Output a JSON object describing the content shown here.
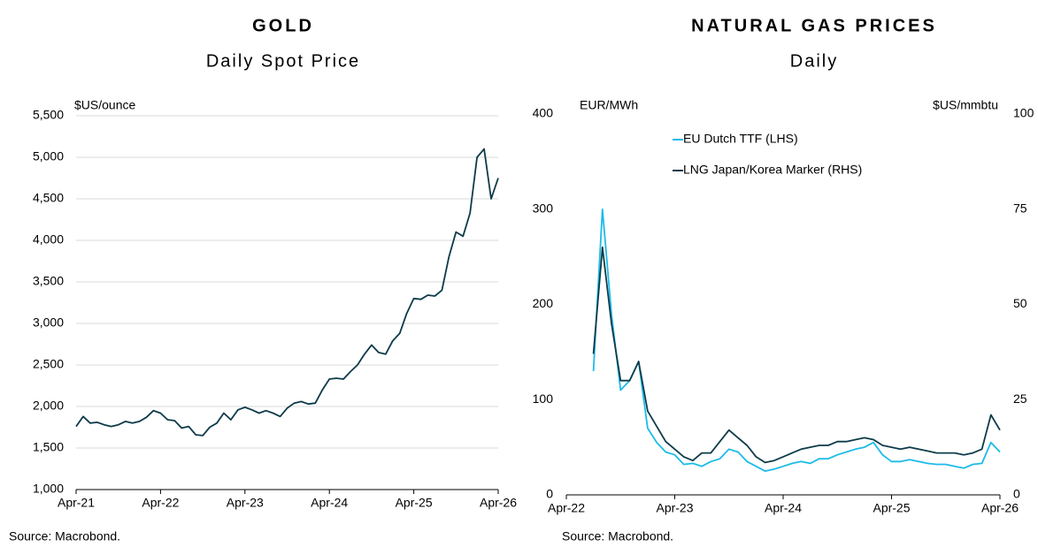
{
  "chart_data": [
    {
      "type": "line",
      "title": "GOLD",
      "subtitle": "Daily Spot Price",
      "y_label": "$US/ounce",
      "source": "Source: Macrobond.",
      "grid": true,
      "x": [
        "2021-04",
        "2021-05",
        "2021-06",
        "2021-07",
        "2021-08",
        "2021-09",
        "2021-10",
        "2021-11",
        "2021-12",
        "2022-01",
        "2022-02",
        "2022-03",
        "2022-04",
        "2022-05",
        "2022-06",
        "2022-07",
        "2022-08",
        "2022-09",
        "2022-10",
        "2022-11",
        "2022-12",
        "2023-01",
        "2023-02",
        "2023-03",
        "2023-04",
        "2023-05",
        "2023-06",
        "2023-07",
        "2023-08",
        "2023-09",
        "2023-10",
        "2023-11",
        "2023-12",
        "2024-01",
        "2024-02",
        "2024-03",
        "2024-04",
        "2024-05",
        "2024-06",
        "2024-07",
        "2024-08",
        "2024-09",
        "2024-10",
        "2024-11",
        "2024-12",
        "2025-01",
        "2025-02",
        "2025-03",
        "2025-04",
        "2025-05",
        "2025-06",
        "2025-07",
        "2025-08",
        "2025-09",
        "2025-10",
        "2025-11",
        "2025-12",
        "2026-01",
        "2026-02",
        "2026-03",
        "2026-04"
      ],
      "series": [
        {
          "name": "Gold",
          "color": "#0d3b4a",
          "values": [
            1760,
            1880,
            1800,
            1810,
            1780,
            1760,
            1780,
            1820,
            1800,
            1820,
            1870,
            1950,
            1920,
            1840,
            1830,
            1740,
            1760,
            1660,
            1650,
            1750,
            1800,
            1920,
            1840,
            1960,
            1990,
            1960,
            1920,
            1950,
            1920,
            1880,
            1980,
            2040,
            2060,
            2030,
            2040,
            2200,
            2330,
            2340,
            2330,
            2420,
            2500,
            2630,
            2740,
            2650,
            2630,
            2790,
            2880,
            3120,
            3300,
            3290,
            3340,
            3330,
            3400,
            3800,
            4100,
            4050,
            4330,
            5000,
            5100,
            4500,
            4750
          ]
        }
      ],
      "xlim": [
        "2021-04",
        "2026-04"
      ],
      "xticks": [
        {
          "value": "2021-04",
          "label": "Apr-21"
        },
        {
          "value": "2022-04",
          "label": "Apr-22"
        },
        {
          "value": "2023-04",
          "label": "Apr-23"
        },
        {
          "value": "2024-04",
          "label": "Apr-24"
        },
        {
          "value": "2025-04",
          "label": "Apr-25"
        },
        {
          "value": "2026-04",
          "label": "Apr-26"
        }
      ],
      "ylim": [
        1000,
        5500
      ],
      "yticks": [
        {
          "value": 1000,
          "label": "1,000"
        },
        {
          "value": 1500,
          "label": "1,500"
        },
        {
          "value": 2000,
          "label": "2,000"
        },
        {
          "value": 2500,
          "label": "2,500"
        },
        {
          "value": 3000,
          "label": "3,000"
        },
        {
          "value": 3500,
          "label": "3,500"
        },
        {
          "value": 4000,
          "label": "4,000"
        },
        {
          "value": 4500,
          "label": "4,500"
        },
        {
          "value": 5000,
          "label": "5,000"
        },
        {
          "value": 5500,
          "label": "5,500"
        }
      ]
    },
    {
      "type": "line",
      "title": "NATURAL GAS PRICES",
      "subtitle": "Daily",
      "y_label": "EUR/MWh",
      "y2_label": "$US/mmbtu",
      "source": "Source: Macrobond.",
      "grid": false,
      "legend": "top",
      "x": [
        "2022-07",
        "2022-08",
        "2022-09",
        "2022-10",
        "2022-11",
        "2022-12",
        "2023-01",
        "2023-02",
        "2023-03",
        "2023-04",
        "2023-05",
        "2023-06",
        "2023-07",
        "2023-08",
        "2023-09",
        "2023-10",
        "2023-11",
        "2023-12",
        "2024-01",
        "2024-02",
        "2024-03",
        "2024-04",
        "2024-05",
        "2024-06",
        "2024-07",
        "2024-08",
        "2024-09",
        "2024-10",
        "2024-11",
        "2024-12",
        "2025-01",
        "2025-02",
        "2025-03",
        "2025-04",
        "2025-05",
        "2025-06",
        "2025-07",
        "2025-08",
        "2025-09",
        "2025-10",
        "2025-11",
        "2025-12",
        "2026-01",
        "2026-02",
        "2026-03",
        "2026-04"
      ],
      "series": [
        {
          "name": "EU Dutch TTF (LHS)",
          "color": "#1cbbe8",
          "values": [
            130,
            300,
            190,
            110,
            120,
            140,
            70,
            55,
            45,
            42,
            32,
            33,
            30,
            35,
            38,
            48,
            45,
            35,
            30,
            25,
            27,
            30,
            33,
            35,
            33,
            38,
            38,
            42,
            45,
            48,
            50,
            55,
            42,
            35,
            35,
            37,
            35,
            33,
            32,
            32,
            30,
            28,
            32,
            33,
            55,
            45
          ]
        },
        {
          "name": "LNG Japan/Korea Marker (RHS)",
          "color": "#0d3b4a",
          "axis": "y2",
          "values": [
            37,
            65,
            45,
            30,
            30,
            35,
            22,
            18,
            14,
            12,
            10,
            9,
            11,
            11,
            14,
            17,
            15,
            13,
            10,
            8.5,
            9,
            10,
            11,
            12,
            12.5,
            13,
            13,
            14,
            14,
            14.5,
            15,
            14.5,
            13,
            12.5,
            12,
            12.5,
            12,
            11.5,
            11,
            11,
            11,
            10.5,
            11,
            12,
            21,
            17
          ]
        }
      ],
      "xlim": [
        "2022-04",
        "2026-04"
      ],
      "xticks": [
        {
          "value": "2022-04",
          "label": "Apr-22"
        },
        {
          "value": "2023-04",
          "label": "Apr-23"
        },
        {
          "value": "2024-04",
          "label": "Apr-24"
        },
        {
          "value": "2025-04",
          "label": "Apr-25"
        },
        {
          "value": "2026-04",
          "label": "Apr-26"
        }
      ],
      "ylim": [
        0,
        400
      ],
      "yticks": [
        0,
        100,
        200,
        300,
        400
      ],
      "y2lim": [
        0,
        100
      ],
      "y2ticks": [
        0,
        25,
        50,
        75,
        100
      ]
    }
  ]
}
